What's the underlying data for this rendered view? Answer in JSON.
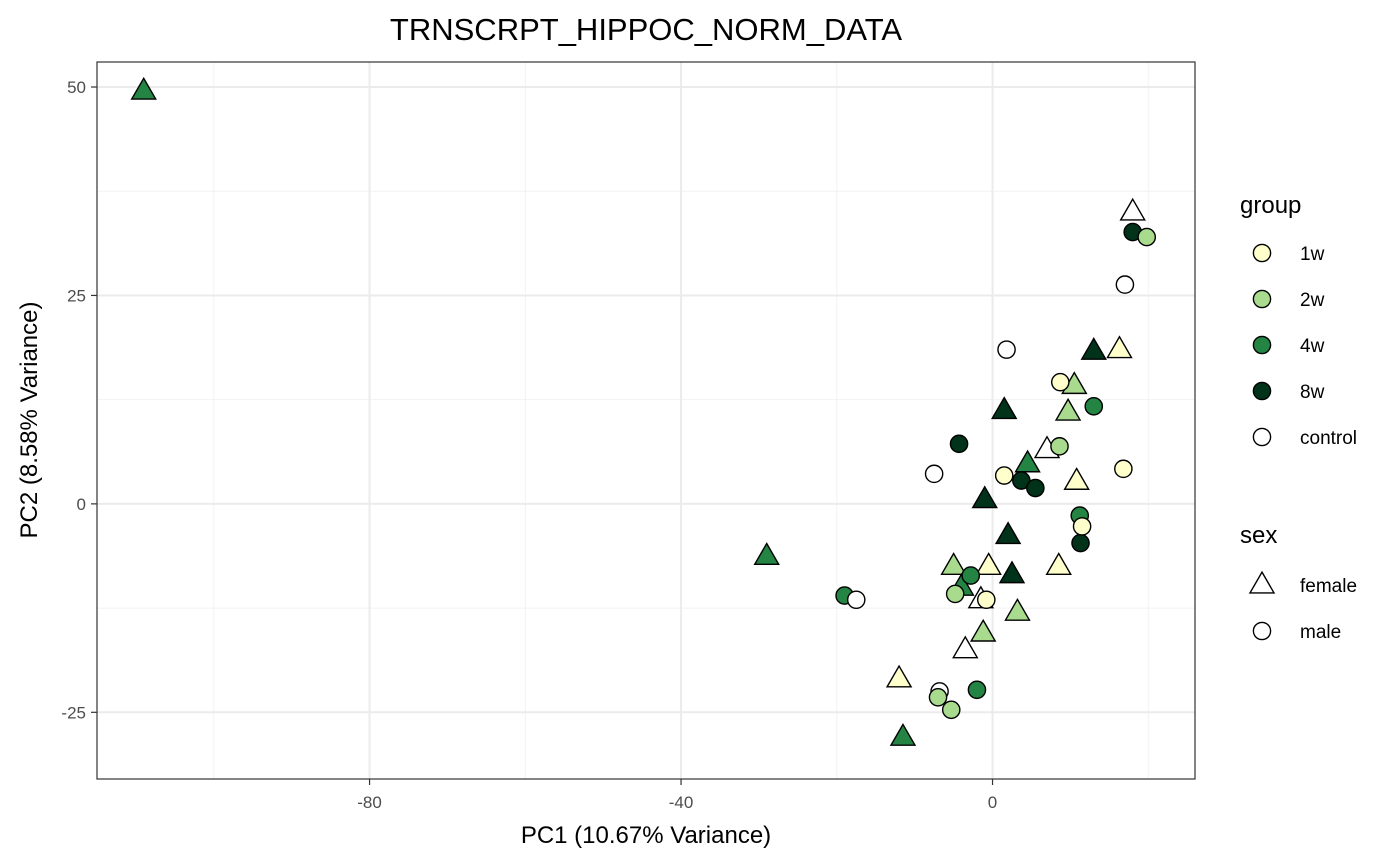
{
  "chart_data": {
    "type": "scatter",
    "title": "TRNSCRPT_HIPPOC_NORM_DATA",
    "xlabel": "PC1 (10.67% Variance)",
    "ylabel": "PC2 (8.58% Variance)",
    "xlim": [
      -115,
      26
    ],
    "ylim": [
      -33,
      53
    ],
    "xticks": [
      -80,
      -40,
      0
    ],
    "yticks": [
      -25,
      0,
      25,
      50
    ],
    "grid": true,
    "legend_position": "right",
    "legends": [
      {
        "title": "group",
        "entries": [
          {
            "label": "1w",
            "color": "#FFFFCC"
          },
          {
            "label": "2w",
            "color": "#A8DB8E"
          },
          {
            "label": "4w",
            "color": "#238443"
          },
          {
            "label": "8w",
            "color": "#00331A"
          },
          {
            "label": "control",
            "color": "#FFFFFF"
          }
        ]
      },
      {
        "title": "sex",
        "entries": [
          {
            "label": "female",
            "shape": "triangle"
          },
          {
            "label": "male",
            "shape": "circle"
          }
        ]
      }
    ],
    "points": [
      {
        "x": -109,
        "y": 49.5,
        "group": "4w",
        "sex": "female"
      },
      {
        "x": -29,
        "y": -6.3,
        "group": "4w",
        "sex": "female"
      },
      {
        "x": -11.5,
        "y": -28,
        "group": "4w",
        "sex": "female"
      },
      {
        "x": -12,
        "y": -21,
        "group": "1w",
        "sex": "female"
      },
      {
        "x": -5,
        "y": -7.5,
        "group": "2w",
        "sex": "female"
      },
      {
        "x": -4,
        "y": -10,
        "group": "4w",
        "sex": "female"
      },
      {
        "x": -3.5,
        "y": -17.5,
        "group": "control",
        "sex": "female"
      },
      {
        "x": -1.5,
        "y": -11.5,
        "group": "control",
        "sex": "female"
      },
      {
        "x": -1.2,
        "y": -15.5,
        "group": "2w",
        "sex": "female"
      },
      {
        "x": -0.5,
        "y": -7.5,
        "group": "1w",
        "sex": "female"
      },
      {
        "x": -1,
        "y": 0.5,
        "group": "8w",
        "sex": "female"
      },
      {
        "x": 1.5,
        "y": 11.2,
        "group": "8w",
        "sex": "female"
      },
      {
        "x": 2,
        "y": -3.8,
        "group": "8w",
        "sex": "female"
      },
      {
        "x": 2.5,
        "y": -8.5,
        "group": "8w",
        "sex": "female"
      },
      {
        "x": 3.2,
        "y": -13,
        "group": "2w",
        "sex": "female"
      },
      {
        "x": 4.5,
        "y": 4.8,
        "group": "4w",
        "sex": "female"
      },
      {
        "x": 7,
        "y": 6.5,
        "group": "control",
        "sex": "female"
      },
      {
        "x": 8.5,
        "y": -7.5,
        "group": "1w",
        "sex": "female"
      },
      {
        "x": 9.7,
        "y": 11,
        "group": "2w",
        "sex": "female"
      },
      {
        "x": 10.5,
        "y": 14.2,
        "group": "2w",
        "sex": "female"
      },
      {
        "x": 10.8,
        "y": 2.7,
        "group": "1w",
        "sex": "female"
      },
      {
        "x": 13,
        "y": 18.3,
        "group": "8w",
        "sex": "female"
      },
      {
        "x": 16.3,
        "y": 18.5,
        "group": "1w",
        "sex": "female"
      },
      {
        "x": 18,
        "y": 35,
        "group": "control",
        "sex": "female"
      },
      {
        "x": -19,
        "y": -11,
        "group": "4w",
        "sex": "male"
      },
      {
        "x": -17.5,
        "y": -11.5,
        "group": "control",
        "sex": "male"
      },
      {
        "x": -7.5,
        "y": 3.6,
        "group": "control",
        "sex": "male"
      },
      {
        "x": -6.8,
        "y": -22.5,
        "group": "control",
        "sex": "male"
      },
      {
        "x": -7,
        "y": -23.2,
        "group": "2w",
        "sex": "male"
      },
      {
        "x": -5.3,
        "y": -24.7,
        "group": "2w",
        "sex": "male"
      },
      {
        "x": -4.8,
        "y": -10.8,
        "group": "2w",
        "sex": "male"
      },
      {
        "x": -4.3,
        "y": 7.2,
        "group": "8w",
        "sex": "male"
      },
      {
        "x": -2.8,
        "y": -8.6,
        "group": "4w",
        "sex": "male"
      },
      {
        "x": -2,
        "y": -22.3,
        "group": "4w",
        "sex": "male"
      },
      {
        "x": -0.8,
        "y": -11.5,
        "group": "1w",
        "sex": "male"
      },
      {
        "x": 1.5,
        "y": 3.4,
        "group": "1w",
        "sex": "male"
      },
      {
        "x": 1.8,
        "y": 18.5,
        "group": "control",
        "sex": "male"
      },
      {
        "x": 3.7,
        "y": 2.8,
        "group": "8w",
        "sex": "male"
      },
      {
        "x": 5.5,
        "y": 1.9,
        "group": "8w",
        "sex": "male"
      },
      {
        "x": 8.7,
        "y": 14.6,
        "group": "1w",
        "sex": "male"
      },
      {
        "x": 8.6,
        "y": 6.9,
        "group": "2w",
        "sex": "male"
      },
      {
        "x": 11.2,
        "y": -1.4,
        "group": "4w",
        "sex": "male"
      },
      {
        "x": 11.3,
        "y": -4.7,
        "group": "8w",
        "sex": "male"
      },
      {
        "x": 11.5,
        "y": -2.7,
        "group": "1w",
        "sex": "male"
      },
      {
        "x": 13,
        "y": 11.7,
        "group": "4w",
        "sex": "male"
      },
      {
        "x": 16.8,
        "y": 4.2,
        "group": "1w",
        "sex": "male"
      },
      {
        "x": 17,
        "y": 26.3,
        "group": "control",
        "sex": "male"
      },
      {
        "x": 18,
        "y": 32.6,
        "group": "8w",
        "sex": "male"
      },
      {
        "x": 19.8,
        "y": 32,
        "group": "2w",
        "sex": "male"
      }
    ]
  }
}
